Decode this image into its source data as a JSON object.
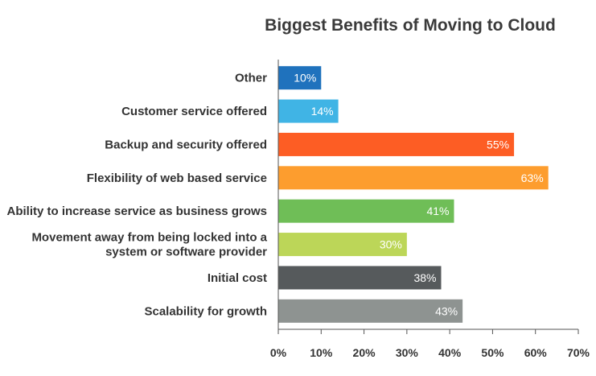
{
  "chart_data": {
    "type": "bar",
    "orientation": "horizontal",
    "title": "Biggest Benefits of Moving to Cloud",
    "xlabel": "",
    "ylabel": "",
    "xlim": [
      0,
      70
    ],
    "ticks": [
      "0%",
      "10%",
      "20%",
      "30%",
      "40%",
      "50%",
      "60%",
      "70%"
    ],
    "categories": [
      [
        "Other"
      ],
      [
        "Customer service offered"
      ],
      [
        "Backup and security offered"
      ],
      [
        "Flexibility of web based service"
      ],
      [
        "Ability to increase service as business grows"
      ],
      [
        "Movement away from being locked into a",
        "system or software provider"
      ],
      [
        "Initial cost"
      ],
      [
        "Scalability for growth"
      ]
    ],
    "values": [
      10,
      14,
      55,
      63,
      41,
      30,
      38,
      43
    ],
    "value_labels": [
      "10%",
      "14%",
      "55%",
      "63%",
      "41%",
      "30%",
      "38%",
      "43%"
    ],
    "colors": [
      "#1f72bd",
      "#40b4e5",
      "#fd5d24",
      "#fd9d2e",
      "#6fbe57",
      "#bcd658",
      "#565a5c",
      "#8e9391"
    ],
    "grid": false,
    "legend": "none"
  }
}
